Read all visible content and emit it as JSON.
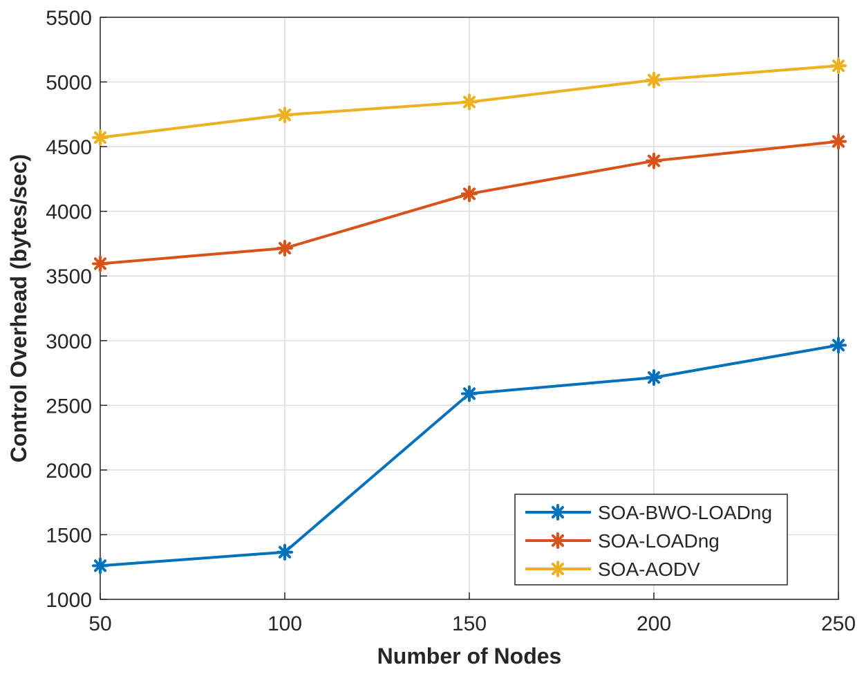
{
  "chart_data": {
    "type": "line",
    "title": "",
    "xlabel": "Number of Nodes",
    "ylabel": "Control Overhead (bytes/sec)",
    "x": [
      50,
      100,
      150,
      200,
      250
    ],
    "xlim": [
      50,
      250
    ],
    "ylim": [
      1000,
      5500
    ],
    "xticks": [
      50,
      100,
      150,
      200,
      250
    ],
    "yticks": [
      1000,
      1500,
      2000,
      2500,
      3000,
      3500,
      4000,
      4500,
      5000,
      5500
    ],
    "grid": true,
    "legend_position": "bottom-right",
    "series": [
      {
        "name": "SOA-BWO-LOADng",
        "color": "#0072BD",
        "marker": "asterisk",
        "values": [
          1260,
          1365,
          2590,
          2715,
          2965
        ]
      },
      {
        "name": "SOA-LOADng",
        "color": "#D95319",
        "marker": "asterisk",
        "values": [
          3595,
          3715,
          4135,
          4390,
          4540
        ]
      },
      {
        "name": "SOA-AODV",
        "color": "#EDB120",
        "marker": "asterisk",
        "values": [
          4570,
          4745,
          4845,
          5015,
          5125
        ]
      }
    ]
  }
}
